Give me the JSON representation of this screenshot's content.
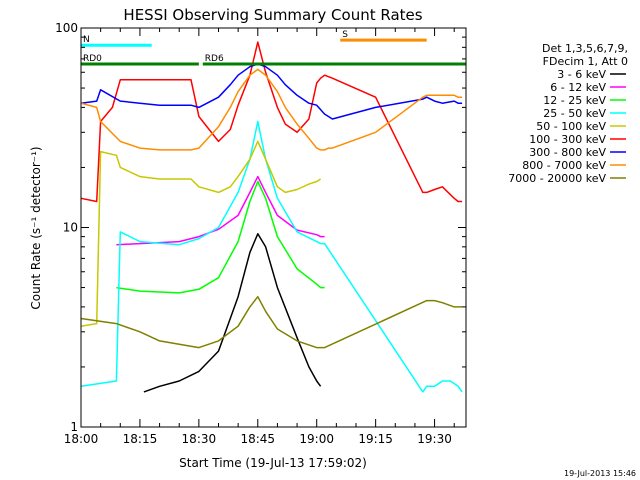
{
  "chart_data": {
    "type": "line",
    "title": "HESSI Observing Summary Count Rates",
    "xlabel": "Start Time (19-Jul-13 17:59:02)",
    "ylabel": "Count Rate (s⁻¹ detector⁻¹)",
    "x_unit": "minutes after 18:00 UT",
    "xlim": [
      0,
      98
    ],
    "ylim": [
      1,
      100
    ],
    "yscale": "log",
    "x_ticks": [
      {
        "x": 0,
        "label": "18:00"
      },
      {
        "x": 15,
        "label": "18:15"
      },
      {
        "x": 30,
        "label": "18:30"
      },
      {
        "x": 45,
        "label": "18:45"
      },
      {
        "x": 60,
        "label": "19:00"
      },
      {
        "x": 75,
        "label": "19:15"
      },
      {
        "x": 90,
        "label": "19:30"
      }
    ],
    "y_ticks": [
      {
        "y": 1,
        "label": "1"
      },
      {
        "y": 10,
        "label": "10"
      },
      {
        "y": 100,
        "label": "100"
      }
    ],
    "legend": {
      "position": "right",
      "header": [
        "Det 1,3,5,6,7,9,",
        "FDecim 1, Att 0"
      ]
    },
    "flags": [
      {
        "label": "N",
        "color": "#00ffff",
        "level": 82,
        "x_start": 0,
        "x_end": 18
      },
      {
        "label": "S",
        "color": "#ff8c00",
        "level": 87,
        "x_start": 66,
        "x_end": 88
      },
      {
        "label": "RD0",
        "color": "#008000",
        "level": 66,
        "x_start": 0,
        "x_end": 30
      },
      {
        "label": "RD6",
        "color": "#008000",
        "level": 66,
        "x_start": 31,
        "x_end": 98
      }
    ],
    "series": [
      {
        "name": "3 - 6 keV",
        "color": "#000000",
        "x": [
          16,
          20,
          25,
          30,
          35,
          40,
          43,
          45,
          47,
          50,
          55,
          58,
          60,
          61
        ],
        "y": [
          1.5,
          1.6,
          1.7,
          1.9,
          2.4,
          4.5,
          7.5,
          9.3,
          8.0,
          5.0,
          2.8,
          2.0,
          1.7,
          1.6
        ]
      },
      {
        "name": "6 - 12 keV",
        "color": "#ff00ff",
        "x": [
          9,
          15,
          25,
          30,
          35,
          40,
          43,
          45,
          47,
          50,
          55,
          60,
          61,
          62
        ],
        "y": [
          8.2,
          8.3,
          8.5,
          9.0,
          9.8,
          11.5,
          15,
          18,
          15,
          11.5,
          9.7,
          9.2,
          9.0,
          9.0
        ]
      },
      {
        "name": "12 - 25 keV",
        "color": "#00ff00",
        "x": [
          9,
          15,
          25,
          30,
          35,
          40,
          43,
          45,
          47,
          50,
          55,
          60,
          61,
          62
        ],
        "y": [
          5.0,
          4.8,
          4.7,
          4.9,
          5.6,
          8.5,
          13.5,
          17,
          14,
          9,
          6.2,
          5.2,
          5.0,
          5.0
        ]
      },
      {
        "name": "25 - 50 keV",
        "color": "#00ffff",
        "x": [
          0,
          9,
          10,
          15,
          25,
          30,
          35,
          40,
          43,
          45,
          47,
          50,
          55,
          60,
          61,
          62,
          87,
          88,
          90,
          92,
          94,
          96,
          97
        ],
        "y": [
          1.6,
          1.7,
          9.5,
          8.5,
          8.2,
          8.8,
          10,
          15,
          22,
          34,
          22,
          14,
          9.5,
          8.5,
          8.3,
          8.3,
          1.5,
          1.6,
          1.6,
          1.7,
          1.7,
          1.6,
          1.5
        ]
      },
      {
        "name": "50 - 100 keV",
        "color": "#c8c800",
        "x": [
          0,
          4,
          5,
          9,
          10,
          15,
          20,
          25,
          28,
          30,
          35,
          38,
          40,
          43,
          45,
          47,
          50,
          52,
          55,
          58,
          60,
          61
        ],
        "y": [
          3.2,
          3.3,
          24,
          23,
          20,
          18,
          17.5,
          17.5,
          17.5,
          16,
          15,
          16,
          18,
          22,
          27,
          22,
          16,
          15,
          15.5,
          16.5,
          17,
          17.5
        ]
      },
      {
        "name": "100 - 300 keV",
        "color": "#ff0000",
        "x": [
          0,
          4,
          5,
          8,
          10,
          15,
          20,
          25,
          28,
          30,
          35,
          38,
          40,
          43,
          45,
          47,
          50,
          52,
          55,
          58,
          60,
          61,
          62,
          63,
          64,
          75,
          87,
          88,
          90,
          92,
          95,
          96,
          97
        ],
        "y": [
          14,
          13.5,
          34,
          40,
          55,
          55,
          55,
          55,
          55,
          36,
          27,
          31,
          41,
          58,
          85,
          60,
          40,
          33,
          30,
          35,
          53,
          56,
          58,
          57,
          56,
          45,
          15,
          15,
          15.5,
          16,
          14,
          13.5,
          13.5
        ]
      },
      {
        "name": "300 - 800 keV",
        "color": "#0000ff",
        "x": [
          0,
          4,
          5,
          10,
          15,
          20,
          25,
          28,
          30,
          35,
          38,
          40,
          43,
          45,
          47,
          50,
          52,
          55,
          58,
          60,
          61,
          62,
          63,
          64,
          75,
          87,
          88,
          90,
          92,
          95,
          96,
          97
        ],
        "y": [
          42,
          43,
          49,
          43,
          42,
          41,
          41,
          41,
          40,
          45,
          52,
          58,
          64,
          66,
          64,
          58,
          52,
          46,
          42,
          41,
          39,
          37,
          36,
          35,
          40,
          44,
          45,
          43,
          42,
          43,
          42,
          42
        ]
      },
      {
        "name": "800 - 7000 keV",
        "color": "#ff8c00",
        "x": [
          0,
          4,
          5,
          10,
          15,
          20,
          25,
          28,
          30,
          35,
          38,
          40,
          43,
          45,
          47,
          50,
          52,
          55,
          58,
          60,
          61,
          62,
          63,
          64,
          75,
          87,
          88,
          90,
          92,
          95,
          96,
          97
        ],
        "y": [
          42,
          40,
          34,
          27,
          25,
          24.5,
          24.5,
          24.5,
          25,
          32,
          40,
          48,
          58,
          62,
          58,
          48,
          40,
          33,
          28,
          25,
          24.5,
          24.5,
          25,
          25,
          30,
          45,
          46,
          46,
          46,
          46,
          45,
          45
        ]
      },
      {
        "name": "7000 - 20000 keV",
        "color": "#808000",
        "x": [
          0,
          9,
          15,
          20,
          25,
          30,
          35,
          40,
          43,
          45,
          47,
          50,
          55,
          60,
          61,
          62,
          88,
          90,
          92,
          95,
          96,
          97
        ],
        "y": [
          3.5,
          3.3,
          3.0,
          2.7,
          2.6,
          2.5,
          2.7,
          3.2,
          4.0,
          4.5,
          3.8,
          3.1,
          2.7,
          2.5,
          2.5,
          2.5,
          4.3,
          4.3,
          4.2,
          4.0,
          4.0,
          4.0
        ]
      }
    ],
    "date_stamp": "19-Jul-2013 15:46"
  }
}
